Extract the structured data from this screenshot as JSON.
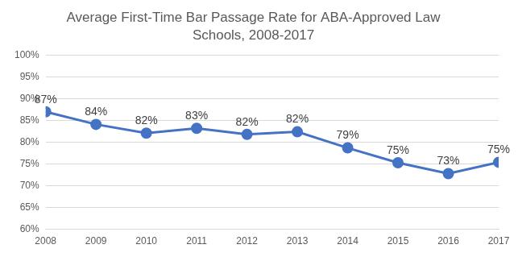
{
  "chart_data": {
    "type": "line",
    "title": "Average First-Time Bar Passage Rate for ABA-Approved Law Schools, 2008-2017",
    "categories": [
      "2008",
      "2009",
      "2010",
      "2011",
      "2012",
      "2013",
      "2014",
      "2015",
      "2016",
      "2017"
    ],
    "values": [
      87.0,
      84.1,
      82.1,
      83.2,
      81.8,
      82.4,
      78.7,
      75.3,
      72.8,
      75.4
    ],
    "value_labels": [
      "87%",
      "84%",
      "82%",
      "83%",
      "82%",
      "82%",
      "79%",
      "75%",
      "73%",
      "75%"
    ],
    "color": "#4472c4",
    "marker": "circle",
    "line_style": "solid",
    "ylim": [
      60,
      100
    ],
    "yticks": [
      {
        "value": 60,
        "label": "60%"
      },
      {
        "value": 65,
        "label": "65%"
      },
      {
        "value": 70,
        "label": "70%"
      },
      {
        "value": 75,
        "label": "75%"
      },
      {
        "value": 80,
        "label": "80%"
      },
      {
        "value": 85,
        "label": "85%"
      },
      {
        "value": 90,
        "label": "90%"
      },
      {
        "value": 95,
        "label": "95%"
      },
      {
        "value": 100,
        "label": "100%"
      }
    ],
    "grid": true,
    "data_labels": true
  }
}
